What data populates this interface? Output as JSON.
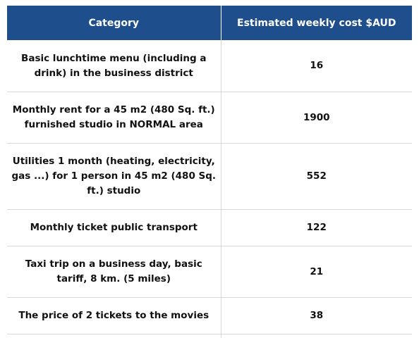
{
  "table": {
    "headers": [
      "Category",
      "Estimated weekly cost $AUD"
    ],
    "rows": [
      {
        "category": "Basic lunchtime menu (including a drink) in the business district",
        "cost": "16"
      },
      {
        "category": "Monthly rent for a 45 m2 (480 Sq. ft.) furnished studio in NORMAL area",
        "cost": "1900"
      },
      {
        "category": "Utilities 1 month (heating, electricity, gas ...) for 1 person in 45 m2 (480 Sq. ft.) studio",
        "cost": "552"
      },
      {
        "category": "Monthly ticket public transport",
        "cost": "122"
      },
      {
        "category": "Taxi trip on a business day, basic tariff, 8 km. (5 miles)",
        "cost": "21"
      },
      {
        "category": "The price of 2 tickets to the movies",
        "cost": "38"
      }
    ]
  },
  "colors": {
    "header_bg": "#1f4e8c",
    "header_text": "#ffffff",
    "body_text": "#111111",
    "rule": "#d9d9d9"
  }
}
